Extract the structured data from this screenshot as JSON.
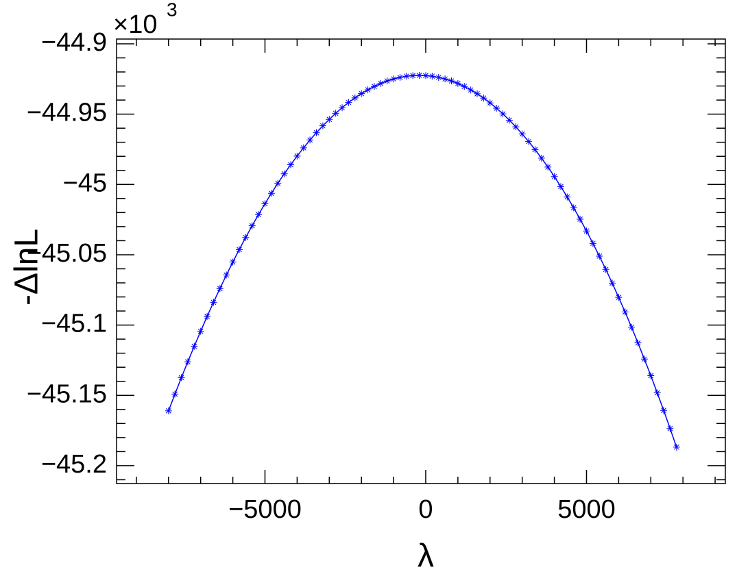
{
  "chart_data": {
    "type": "line",
    "x_label": "λ",
    "y_label": "-ΔlnL",
    "y_multiplier": {
      "base": "×10",
      "exponent": "3"
    },
    "x": [
      -8000,
      -7800,
      -7600,
      -7400,
      -7200,
      -7000,
      -6800,
      -6600,
      -6400,
      -6200,
      -6000,
      -5800,
      -5600,
      -5400,
      -5200,
      -5000,
      -4800,
      -4600,
      -4400,
      -4200,
      -4000,
      -3800,
      -3600,
      -3400,
      -3200,
      -3000,
      -2800,
      -2600,
      -2400,
      -2200,
      -2000,
      -1800,
      -1600,
      -1400,
      -1200,
      -1000,
      -800,
      -600,
      -400,
      -200,
      0,
      200,
      400,
      600,
      800,
      1000,
      1200,
      1400,
      1600,
      1800,
      2000,
      2200,
      2400,
      2600,
      2800,
      3000,
      3200,
      3400,
      3600,
      3800,
      4000,
      4200,
      4400,
      4600,
      4800,
      5000,
      5200,
      5400,
      5600,
      5800,
      6000,
      6200,
      6400,
      6600,
      6800,
      7000,
      7200,
      7400,
      7600,
      7800
    ],
    "series": [
      {
        "color": "#0000ff",
        "marker": "star",
        "values": [
          -45.161,
          -45.1491,
          -45.1374,
          -45.1261,
          -45.1151,
          -45.1044,
          -45.0939,
          -45.0838,
          -45.074,
          -45.0644,
          -45.0552,
          -45.0463,
          -45.0377,
          -45.0294,
          -45.0214,
          -45.0137,
          -45.0063,
          -44.9992,
          -44.9924,
          -44.986,
          -44.9798,
          -44.974,
          -44.9684,
          -44.9632,
          -44.9583,
          -44.9537,
          -44.9494,
          -44.9454,
          -44.9417,
          -44.9384,
          -44.9354,
          -44.9327,
          -44.9303,
          -44.9282,
          -44.9264,
          -44.925,
          -44.9239,
          -44.923,
          -44.9226,
          -44.9224,
          -44.9226,
          -44.923,
          -44.9239,
          -44.925,
          -44.9264,
          -44.9282,
          -44.9303,
          -44.9328,
          -44.9355,
          -44.9386,
          -44.942,
          -44.9458,
          -44.9498,
          -44.9543,
          -44.959,
          -44.9641,
          -44.9695,
          -44.9752,
          -44.9813,
          -44.9876,
          -44.9944,
          -45.0015,
          -45.0089,
          -45.0166,
          -45.0247,
          -45.0331,
          -45.0419,
          -45.051,
          -45.0604,
          -45.0702,
          -45.0803,
          -45.0907,
          -45.1015,
          -45.1127,
          -45.1242,
          -45.136,
          -45.1482,
          -45.1607,
          -45.1736,
          -45.1868
        ]
      }
    ],
    "xlim": [
      -9616,
      9318
    ],
    "ylim": [
      -45.2127,
      -44.8966
    ],
    "xticks": [
      {
        "value": -5000,
        "label": "−5000"
      },
      0,
      5000
    ],
    "yticks": [
      {
        "value": -44.9,
        "label": "−44.9"
      },
      {
        "value": -44.95,
        "label": "−44.95"
      },
      {
        "value": -45,
        "label": "−45"
      },
      {
        "value": -45.05,
        "label": "−45.05"
      },
      {
        "value": -45.1,
        "label": "−45.1"
      },
      {
        "value": -45.15,
        "label": "−45.15"
      },
      {
        "value": -45.2,
        "label": "−45.2"
      }
    ],
    "grid": false
  }
}
